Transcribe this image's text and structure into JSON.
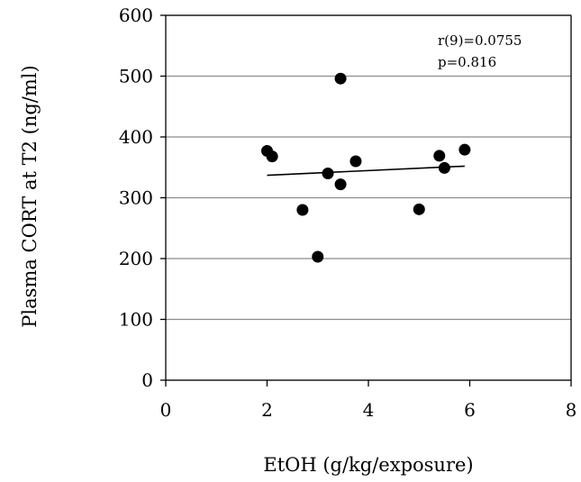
{
  "chart_data": {
    "type": "scatter",
    "xlabel": "EtOH (g/kg/exposure)",
    "ylabel": "Plasma CORT at T2 (ng/ml)",
    "xlim": [
      0,
      8
    ],
    "ylim": [
      0,
      600
    ],
    "xticks": [
      "0",
      "2",
      "4",
      "6",
      "8"
    ],
    "yticks": [
      "0",
      "100",
      "200",
      "300",
      "400",
      "500",
      "600"
    ],
    "grid": "horizontal",
    "annotations": [
      "r(9)=0.0755",
      "p=0.816"
    ],
    "points": [
      {
        "x": 2.0,
        "y": 377
      },
      {
        "x": 2.1,
        "y": 368
      },
      {
        "x": 2.7,
        "y": 280
      },
      {
        "x": 3.0,
        "y": 203
      },
      {
        "x": 3.2,
        "y": 340
      },
      {
        "x": 3.45,
        "y": 322
      },
      {
        "x": 3.45,
        "y": 496
      },
      {
        "x": 3.75,
        "y": 360
      },
      {
        "x": 5.0,
        "y": 281
      },
      {
        "x": 5.4,
        "y": 369
      },
      {
        "x": 5.5,
        "y": 349
      },
      {
        "x": 5.9,
        "y": 379
      }
    ],
    "trendline": {
      "x": [
        2.0,
        5.9
      ],
      "y": [
        337,
        352
      ]
    }
  }
}
